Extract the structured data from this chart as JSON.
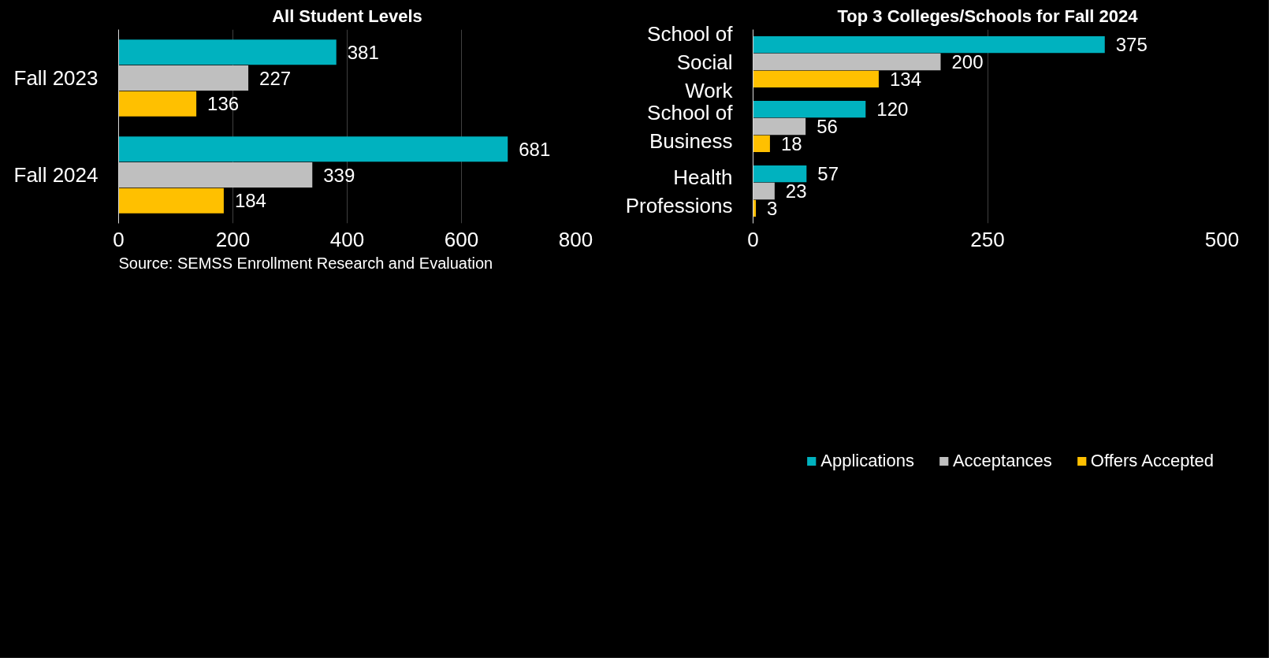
{
  "chart_data": [
    {
      "type": "bar",
      "orientation": "horizontal",
      "title": "All Student Levels",
      "categories": [
        "Fall 2023",
        "Fall 2024"
      ],
      "series": [
        {
          "color": "#00b2bf",
          "values": [
            381,
            681
          ]
        },
        {
          "color": "#bfbfbf",
          "values": [
            227,
            339
          ]
        },
        {
          "color": "#ffc000",
          "values": [
            136,
            184
          ]
        }
      ],
      "xlim": [
        0,
        800
      ],
      "xticks": [
        0,
        200,
        400,
        600,
        800
      ],
      "grid": "x",
      "data_labels": true,
      "legend": false,
      "annotations": [
        "Source: SEMSS Enrollment Research and Evaluation"
      ]
    },
    {
      "type": "bar",
      "orientation": "horizontal",
      "title": "Top 3 Colleges/Schools for Fall 2024",
      "categories": [
        "School of Social Work",
        "School of Business",
        "Health Professions"
      ],
      "series": [
        {
          "name": "Applications",
          "color": "#00b2bf",
          "values": [
            375,
            120,
            57
          ]
        },
        {
          "name": "Acceptances",
          "color": "#bfbfbf",
          "values": [
            200,
            56,
            23
          ]
        },
        {
          "name": "Offers Accepted",
          "color": "#ffc000",
          "values": [
            134,
            18,
            3
          ]
        }
      ],
      "xlim": [
        0,
        500
      ],
      "xticks": [
        0,
        250,
        500
      ],
      "grid": "x",
      "data_labels": true,
      "legend": "bottom"
    }
  ]
}
